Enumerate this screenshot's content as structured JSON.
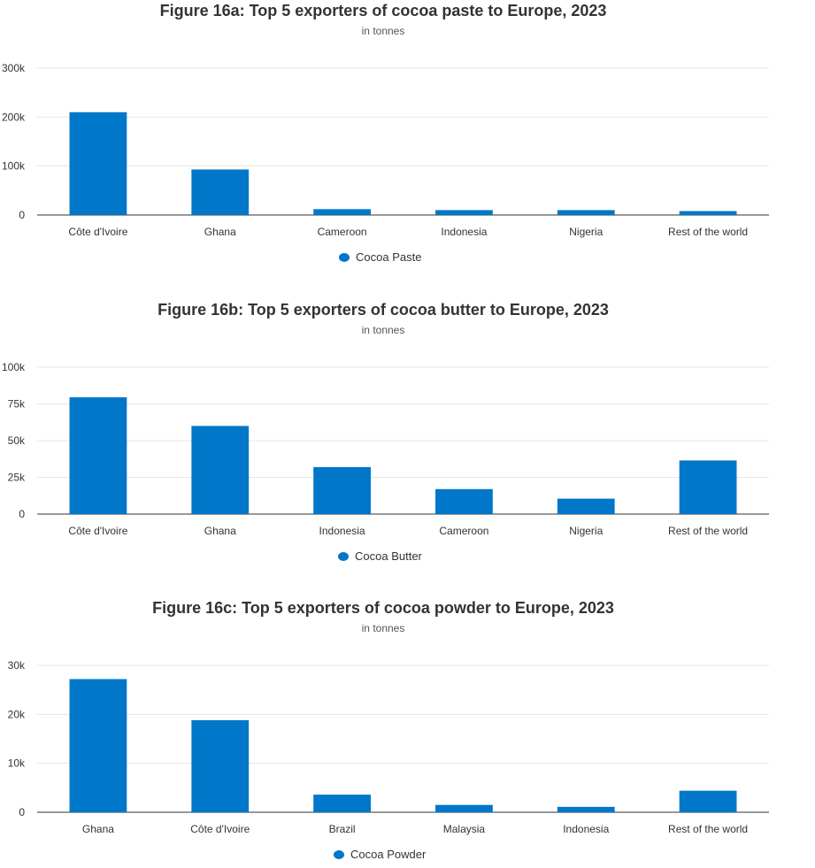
{
  "chart_data": [
    {
      "type": "bar",
      "title": "Figure 16a: Top 5 exporters of cocoa paste to Europe, 2023",
      "subtitle": "in tonnes",
      "categories": [
        "Côte d'Ivoire",
        "Ghana",
        "Cameroon",
        "Indonesia",
        "Nigeria",
        "Rest of the world"
      ],
      "series": [
        {
          "name": "Cocoa Paste",
          "values": [
            210000,
            93000,
            12000,
            10000,
            10000,
            8000
          ]
        }
      ],
      "ylim": [
        0,
        300000
      ],
      "yticks": [
        0,
        100000,
        200000,
        300000
      ],
      "ytick_labels": [
        "0",
        "100k",
        "200k",
        "300k"
      ],
      "grid": true,
      "legend": "bottom-center",
      "color": "#0077C8"
    },
    {
      "type": "bar",
      "title": "Figure 16b: Top 5 exporters of cocoa butter to Europe, 2023",
      "subtitle": "in tonnes",
      "categories": [
        "Côte d'Ivoire",
        "Ghana",
        "Indonesia",
        "Cameroon",
        "Nigeria",
        "Rest of the world"
      ],
      "series": [
        {
          "name": "Cocoa Butter",
          "values": [
            79500,
            60000,
            32000,
            17000,
            10500,
            36500
          ]
        }
      ],
      "ylim": [
        0,
        100000
      ],
      "yticks": [
        0,
        25000,
        50000,
        75000,
        100000
      ],
      "ytick_labels": [
        "0",
        "25k",
        "50k",
        "75k",
        "100k"
      ],
      "grid": true,
      "legend": "bottom-center",
      "color": "#0077C8"
    },
    {
      "type": "bar",
      "title": "Figure 16c: Top 5 exporters of cocoa powder to Europe, 2023",
      "subtitle": "in tonnes",
      "categories": [
        "Ghana",
        "Côte d'Ivoire",
        "Brazil",
        "Malaysia",
        "Indonesia",
        "Rest of the world"
      ],
      "series": [
        {
          "name": "Cocoa Powder",
          "values": [
            27200,
            18800,
            3600,
            1500,
            1100,
            4400
          ]
        }
      ],
      "ylim": [
        0,
        30000
      ],
      "yticks": [
        0,
        10000,
        20000,
        30000
      ],
      "ytick_labels": [
        "0",
        "10k",
        "20k",
        "30k"
      ],
      "grid": true,
      "legend": "bottom-center",
      "color": "#0077C8"
    }
  ]
}
